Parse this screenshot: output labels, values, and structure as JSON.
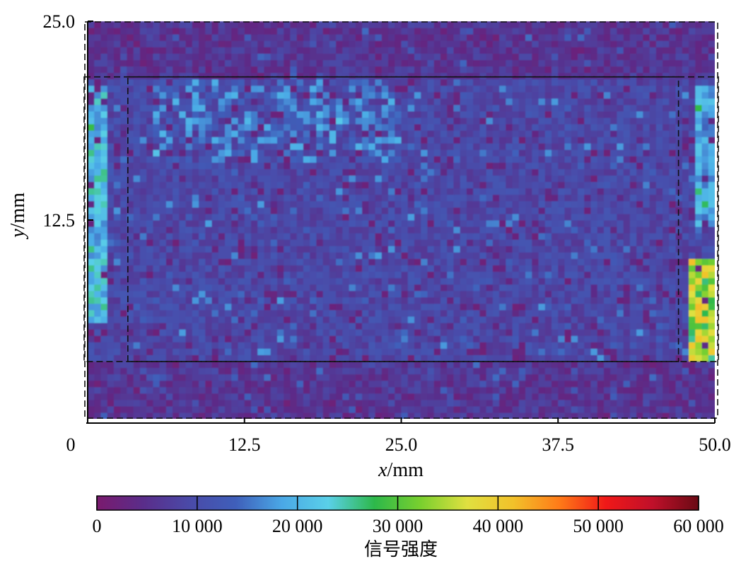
{
  "chart_data": {
    "type": "heatmap",
    "title": "",
    "xlabel": {
      "var": "x",
      "unit": "/mm"
    },
    "ylabel": {
      "var": "y",
      "unit": "/mm"
    },
    "xlim": [
      0,
      50
    ],
    "ylim": [
      0,
      25
    ],
    "x_ticks": [
      {
        "value": 0,
        "label": "0"
      },
      {
        "value": 12.5,
        "label": "12.5"
      },
      {
        "value": 25,
        "label": "25.0"
      },
      {
        "value": 37.5,
        "label": "37.5"
      },
      {
        "value": 50,
        "label": "50.0"
      }
    ],
    "y_ticks": [
      {
        "value": 12.5,
        "label": "12.5"
      },
      {
        "value": 25,
        "label": "25.0"
      }
    ],
    "grid": false,
    "regions": [
      {
        "x_range": [
          0,
          50
        ],
        "y_range": [
          0,
          25
        ],
        "style": "dashed"
      },
      {
        "x_range": [
          0,
          50
        ],
        "y_range": [
          3.6,
          21.5
        ],
        "style": "solid-dashed"
      },
      {
        "x_range": [
          3.2,
          47.1
        ],
        "y_range": [
          3.6,
          21.5
        ],
        "style": "dashed"
      }
    ],
    "colorbar": {
      "title": "信号强度",
      "min": 0,
      "max": 60000,
      "ticks": [
        {
          "value": 0,
          "label": "0"
        },
        {
          "value": 10000,
          "label": "10 000"
        },
        {
          "value": 20000,
          "label": "20 000"
        },
        {
          "value": 30000,
          "label": "30 000"
        },
        {
          "value": 40000,
          "label": "40 000"
        },
        {
          "value": 50000,
          "label": "50 000"
        },
        {
          "value": 60000,
          "label": "60 000"
        }
      ],
      "colors": [
        "#7a1a6e",
        "#5a2d8a",
        "#4a4aa8",
        "#3f5fba",
        "#4aa8e6",
        "#5ad0e8",
        "#2db84a",
        "#7ad02e",
        "#e0e040",
        "#f2c12a",
        "#ff7a18",
        "#f01818",
        "#c0102a",
        "#6a0a14"
      ],
      "placement": "bottom"
    },
    "field_summary": {
      "background_signal": [
        3000,
        9000
      ],
      "outer_bands_y": [
        [
          0,
          3.6
        ],
        [
          21.5,
          25
        ]
      ],
      "outer_band_signal": [
        3000,
        9000
      ],
      "central_signal": [
        6000,
        12000
      ],
      "upper_central_hotspots": {
        "x_range": [
          5,
          25
        ],
        "y_range": [
          16,
          21.5
        ],
        "signal": [
          12000,
          20000
        ]
      },
      "left_edge_hotspot": {
        "x_range": [
          0,
          1.5
        ],
        "y_range": [
          6,
          21
        ],
        "signal": [
          16000,
          26000
        ]
      },
      "right_edge_hotspots": [
        {
          "x_range": [
            48.5,
            50
          ],
          "y_range": [
            12,
            21
          ],
          "signal": [
            14000,
            22000
          ]
        },
        {
          "x_range": [
            48,
            50
          ],
          "y_range": [
            3.6,
            10
          ],
          "signal": [
            25000,
            42000
          ]
        }
      ]
    }
  }
}
